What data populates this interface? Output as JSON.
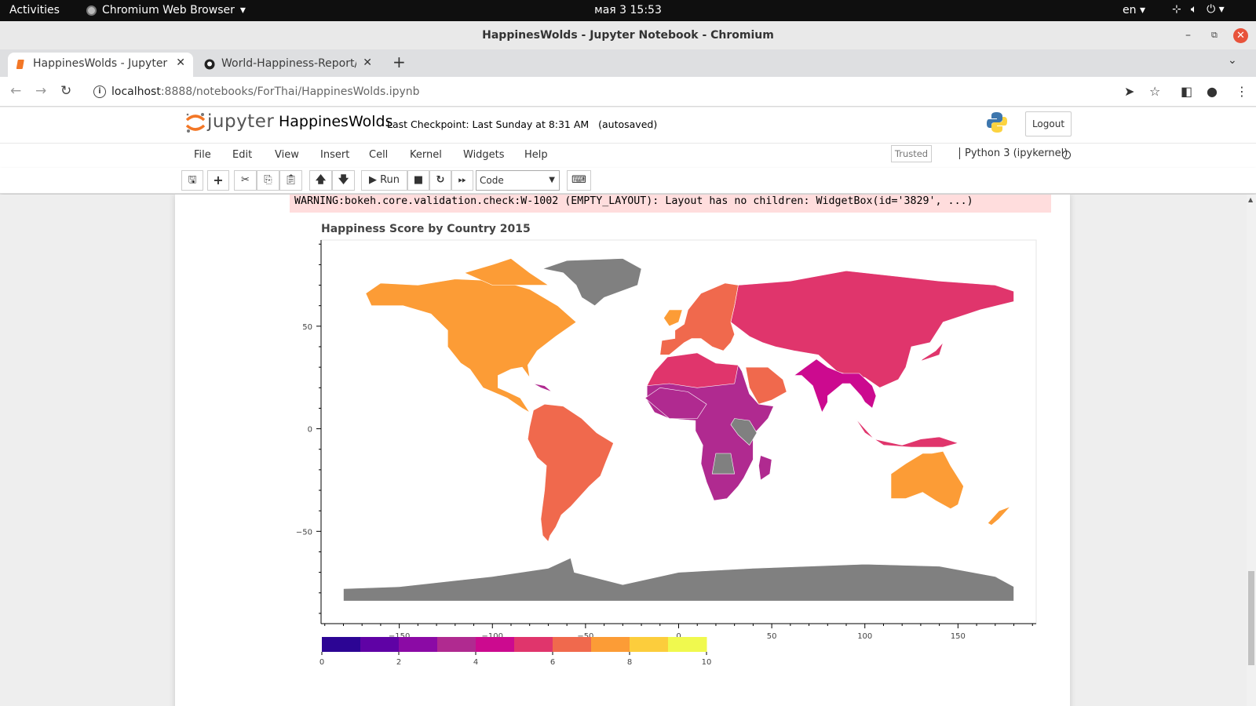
{
  "system": {
    "activities": "Activities",
    "app_name": "Chromium Web Browser",
    "clock": "мая 3  15:53",
    "lang": "en"
  },
  "window": {
    "title": "HappinesWolds - Jupyter Notebook - Chromium"
  },
  "tabs": [
    {
      "label": "HappinesWolds - Jupyter",
      "active": true
    },
    {
      "label": "World-Happiness-Report/",
      "active": false
    }
  ],
  "address": {
    "host": "localhost",
    "path": ":8888/notebooks/ForThai/HappinesWolds.ipynb"
  },
  "jupyter": {
    "wordmark": "jupyter",
    "notebook_name": "HappinesWolds",
    "checkpoint": "Last Checkpoint: Last Sunday at 8:31 AM",
    "autosaved": "(autosaved)",
    "logout": "Logout",
    "menu": [
      "File",
      "Edit",
      "View",
      "Insert",
      "Cell",
      "Kernel",
      "Widgets",
      "Help"
    ],
    "trusted": "Trusted",
    "kernel": "Python 3 (ipykernel)",
    "run_label": "Run",
    "cell_type": "Code"
  },
  "output": {
    "warning": "WARNING:bokeh.core.validation.check:W-1002 (EMPTY_LAYOUT): Layout has no children: WidgetBox(id='3829', ...)"
  },
  "chart_data": {
    "type": "choropleth",
    "title": "Happiness Score by Country  2015",
    "xlabel": "",
    "ylabel": "",
    "xlim": [
      -192,
      192
    ],
    "ylim": [
      -95,
      92
    ],
    "x_ticks": [
      -150,
      -100,
      -50,
      0,
      50,
      100,
      150
    ],
    "y_ticks": [
      50,
      0,
      -50
    ],
    "colorbar": {
      "range": [
        0,
        10
      ],
      "ticks": [
        0,
        2,
        4,
        6,
        8,
        10
      ],
      "palette": [
        "#2c0594",
        "#5f02a5",
        "#8b0aa5",
        "#b02a90",
        "#cc0a8f",
        "#e0356c",
        "#f0694d",
        "#fc9c36",
        "#fccd3c",
        "#f0f94e"
      ]
    },
    "no_data_color": "#808080",
    "regions": [
      {
        "name": "North America",
        "score_color": "#fc9c36"
      },
      {
        "name": "South America",
        "score_color": "#f0694d"
      },
      {
        "name": "Russia / East Asia",
        "score_color": "#e0356c"
      },
      {
        "name": "Europe",
        "score_color": "#f0694d"
      },
      {
        "name": "Africa",
        "score_color": "#b02a90"
      },
      {
        "name": "South Asia",
        "score_color": "#cc0a8f"
      },
      {
        "name": "Australia",
        "score_color": "#fc9c36"
      },
      {
        "name": "Greenland",
        "score_color": "#808080"
      },
      {
        "name": "Antarctica",
        "score_color": "#808080"
      }
    ]
  }
}
